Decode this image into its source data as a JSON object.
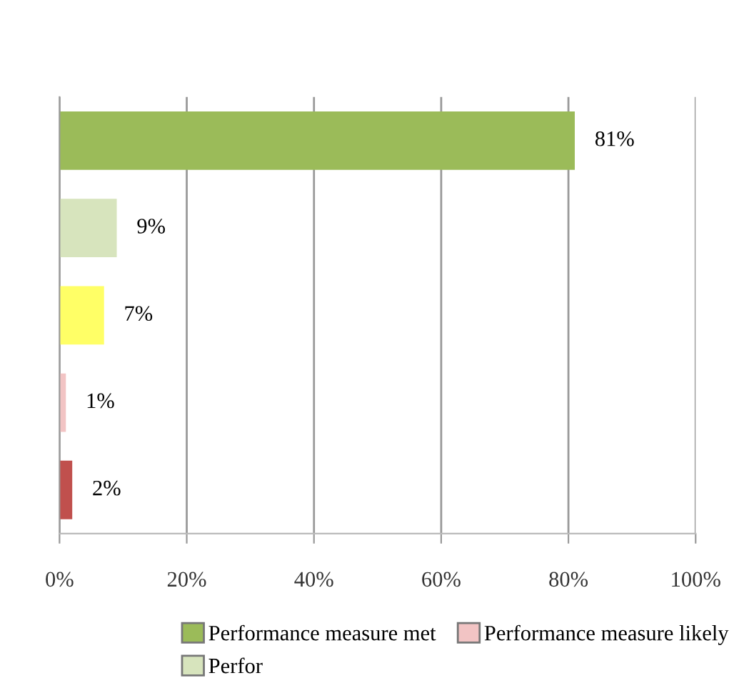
{
  "chart_data": {
    "type": "bar",
    "orientation": "horizontal",
    "categories": [
      null,
      null,
      null,
      null,
      null
    ],
    "series": [
      {
        "name": "Performance measure met",
        "color": "#9bbb59",
        "values": [
          81,
          null,
          null,
          null,
          null
        ],
        "value_labels": [
          "81%",
          null,
          null,
          null,
          null
        ]
      },
      {
        "name": "Perfor",
        "color": "#d7e4bd",
        "values": [
          null,
          9,
          null,
          null,
          null
        ],
        "value_labels": [
          null,
          "9%",
          null,
          null,
          null
        ]
      },
      {
        "color": "#ffff66",
        "values": [
          null,
          null,
          7,
          null,
          null
        ],
        "value_labels": [
          null,
          null,
          "7%",
          null,
          null
        ]
      },
      {
        "name": "Performance measure likely",
        "color": "#f2c4c4",
        "values": [
          null,
          null,
          null,
          1,
          null
        ],
        "value_labels": [
          null,
          null,
          null,
          "1%",
          null
        ]
      },
      {
        "color": "#c0504d",
        "values": [
          null,
          null,
          null,
          null,
          2
        ],
        "value_labels": [
          null,
          null,
          null,
          null,
          "2%"
        ]
      }
    ],
    "xlim": [
      0,
      100
    ],
    "xticks": [
      {
        "value": 0,
        "label": "0%"
      },
      {
        "value": 20,
        "label": "20%"
      },
      {
        "value": 40,
        "label": "40%"
      },
      {
        "value": 60,
        "label": "60%"
      },
      {
        "value": 80,
        "label": "80%"
      },
      {
        "value": 100,
        "label": "100%"
      }
    ],
    "grid": "x",
    "legend": "bottom"
  }
}
